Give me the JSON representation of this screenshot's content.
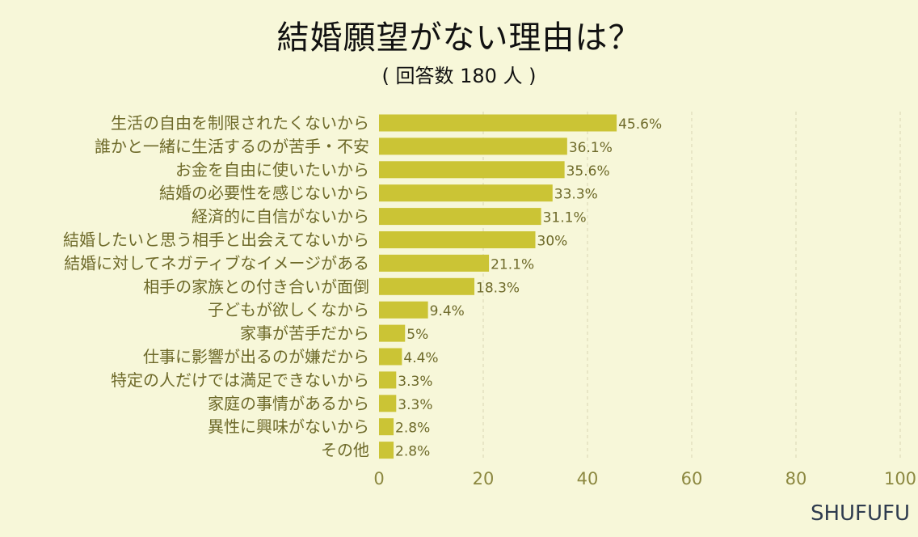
{
  "brand": "SHUFUFU",
  "chart_data": {
    "type": "bar",
    "orientation": "horizontal",
    "title": "結婚願望がない理由は？",
    "subtitle": "( 回答数 180 人 )",
    "xlim": [
      0,
      100
    ],
    "xticks": [
      0,
      20,
      40,
      60,
      80,
      100
    ],
    "grid": true,
    "categories": [
      "生活の自由を制限されたくないから",
      "誰かと一緒に生活するのが苦手・不安",
      "お金を自由に使いたいから",
      "結婚の必要性を感じないから",
      "経済的に自信がないから",
      "結婚したいと思う相手と出会えてないから",
      "結婚に対してネガティブなイメージがある",
      "相手の家族との付き合いが面倒",
      "子どもが欲しくなから",
      "家事が苦手だから",
      "仕事に影響が出るのが嫌だから",
      "特定の人だけでは満足できないから",
      "家庭の事情があるから",
      "異性に興味がないから",
      "その他"
    ],
    "values": [
      45.6,
      36.1,
      35.6,
      33.3,
      31.1,
      30,
      21.1,
      18.3,
      9.4,
      5,
      4.4,
      3.3,
      3.3,
      2.8,
      2.8
    ],
    "value_labels": [
      "45.6%",
      "36.1%",
      "35.6%",
      "33.3%",
      "31.1%",
      "30%",
      "21.1%",
      "18.3%",
      "9.4%",
      "5%",
      "4.4%",
      "3.3%",
      "3.3%",
      "2.8%",
      "2.8%"
    ],
    "colors": {
      "bar": "#cbc435",
      "background": "#f7f7d9"
    }
  }
}
